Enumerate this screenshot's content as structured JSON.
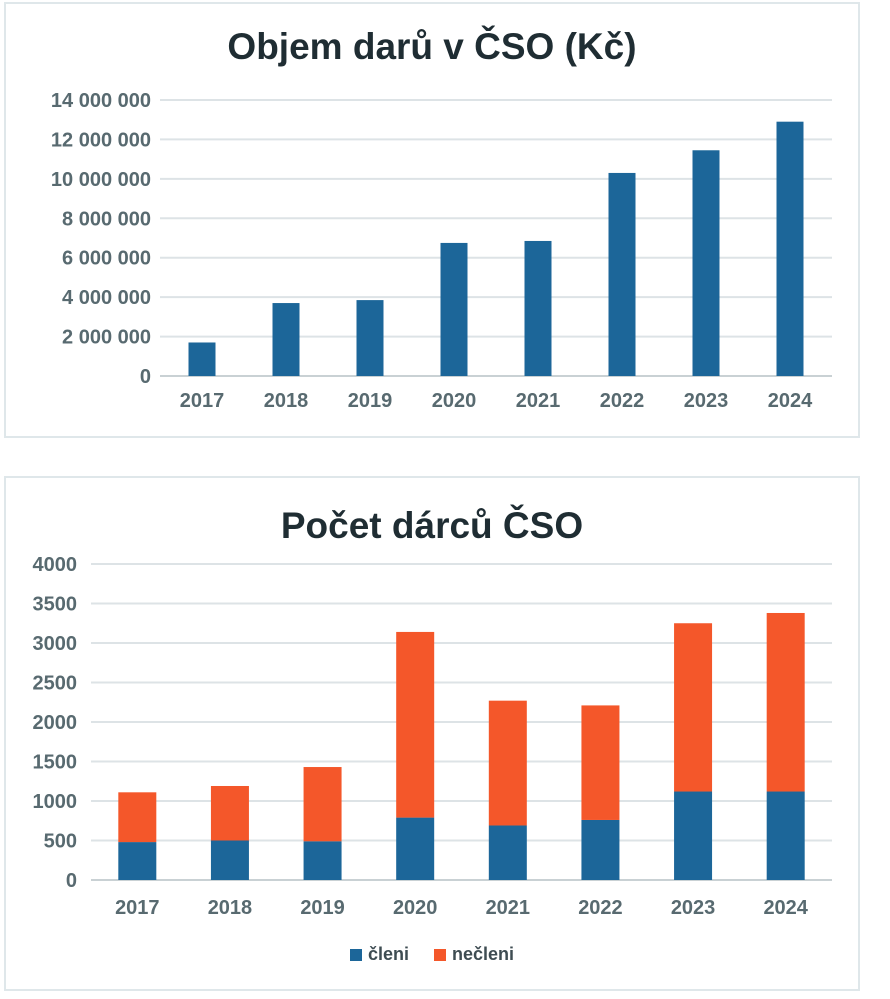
{
  "chart_data": [
    {
      "type": "bar",
      "title": "Objem darů v ČSO (Kč)",
      "categories": [
        "2017",
        "2018",
        "2019",
        "2020",
        "2021",
        "2022",
        "2023",
        "2024"
      ],
      "values": [
        1700000,
        3700000,
        3850000,
        6750000,
        6850000,
        10300000,
        11450000,
        12900000
      ],
      "yticks": [
        "0",
        "2 000 000",
        "4 000 000",
        "6 000 000",
        "8 000 000",
        "10 000 000",
        "12 000 000",
        "14 000 000"
      ],
      "ylim": [
        0,
        14000000
      ],
      "grid": true,
      "colors": {
        "bar": "#1c6699",
        "grid": "#dde3e6",
        "axis": "#c9d1d4"
      }
    },
    {
      "type": "bar",
      "stacked": true,
      "title": "Počet dárců ČSO",
      "categories": [
        "2017",
        "2018",
        "2019",
        "2020",
        "2021",
        "2022",
        "2023",
        "2024"
      ],
      "series": [
        {
          "name": "členi",
          "color": "#1c6699",
          "values": [
            480,
            500,
            490,
            790,
            690,
            760,
            1120,
            1120
          ]
        },
        {
          "name": "nečleni",
          "color": "#f4572a",
          "values": [
            630,
            690,
            940,
            2350,
            1580,
            1450,
            2130,
            2260
          ]
        }
      ],
      "yticks": [
        "0",
        "500",
        "1000",
        "1500",
        "2000",
        "2500",
        "3000",
        "3500",
        "4000"
      ],
      "ylim": [
        0,
        4000
      ],
      "grid": true,
      "legend_position": "bottom"
    }
  ]
}
